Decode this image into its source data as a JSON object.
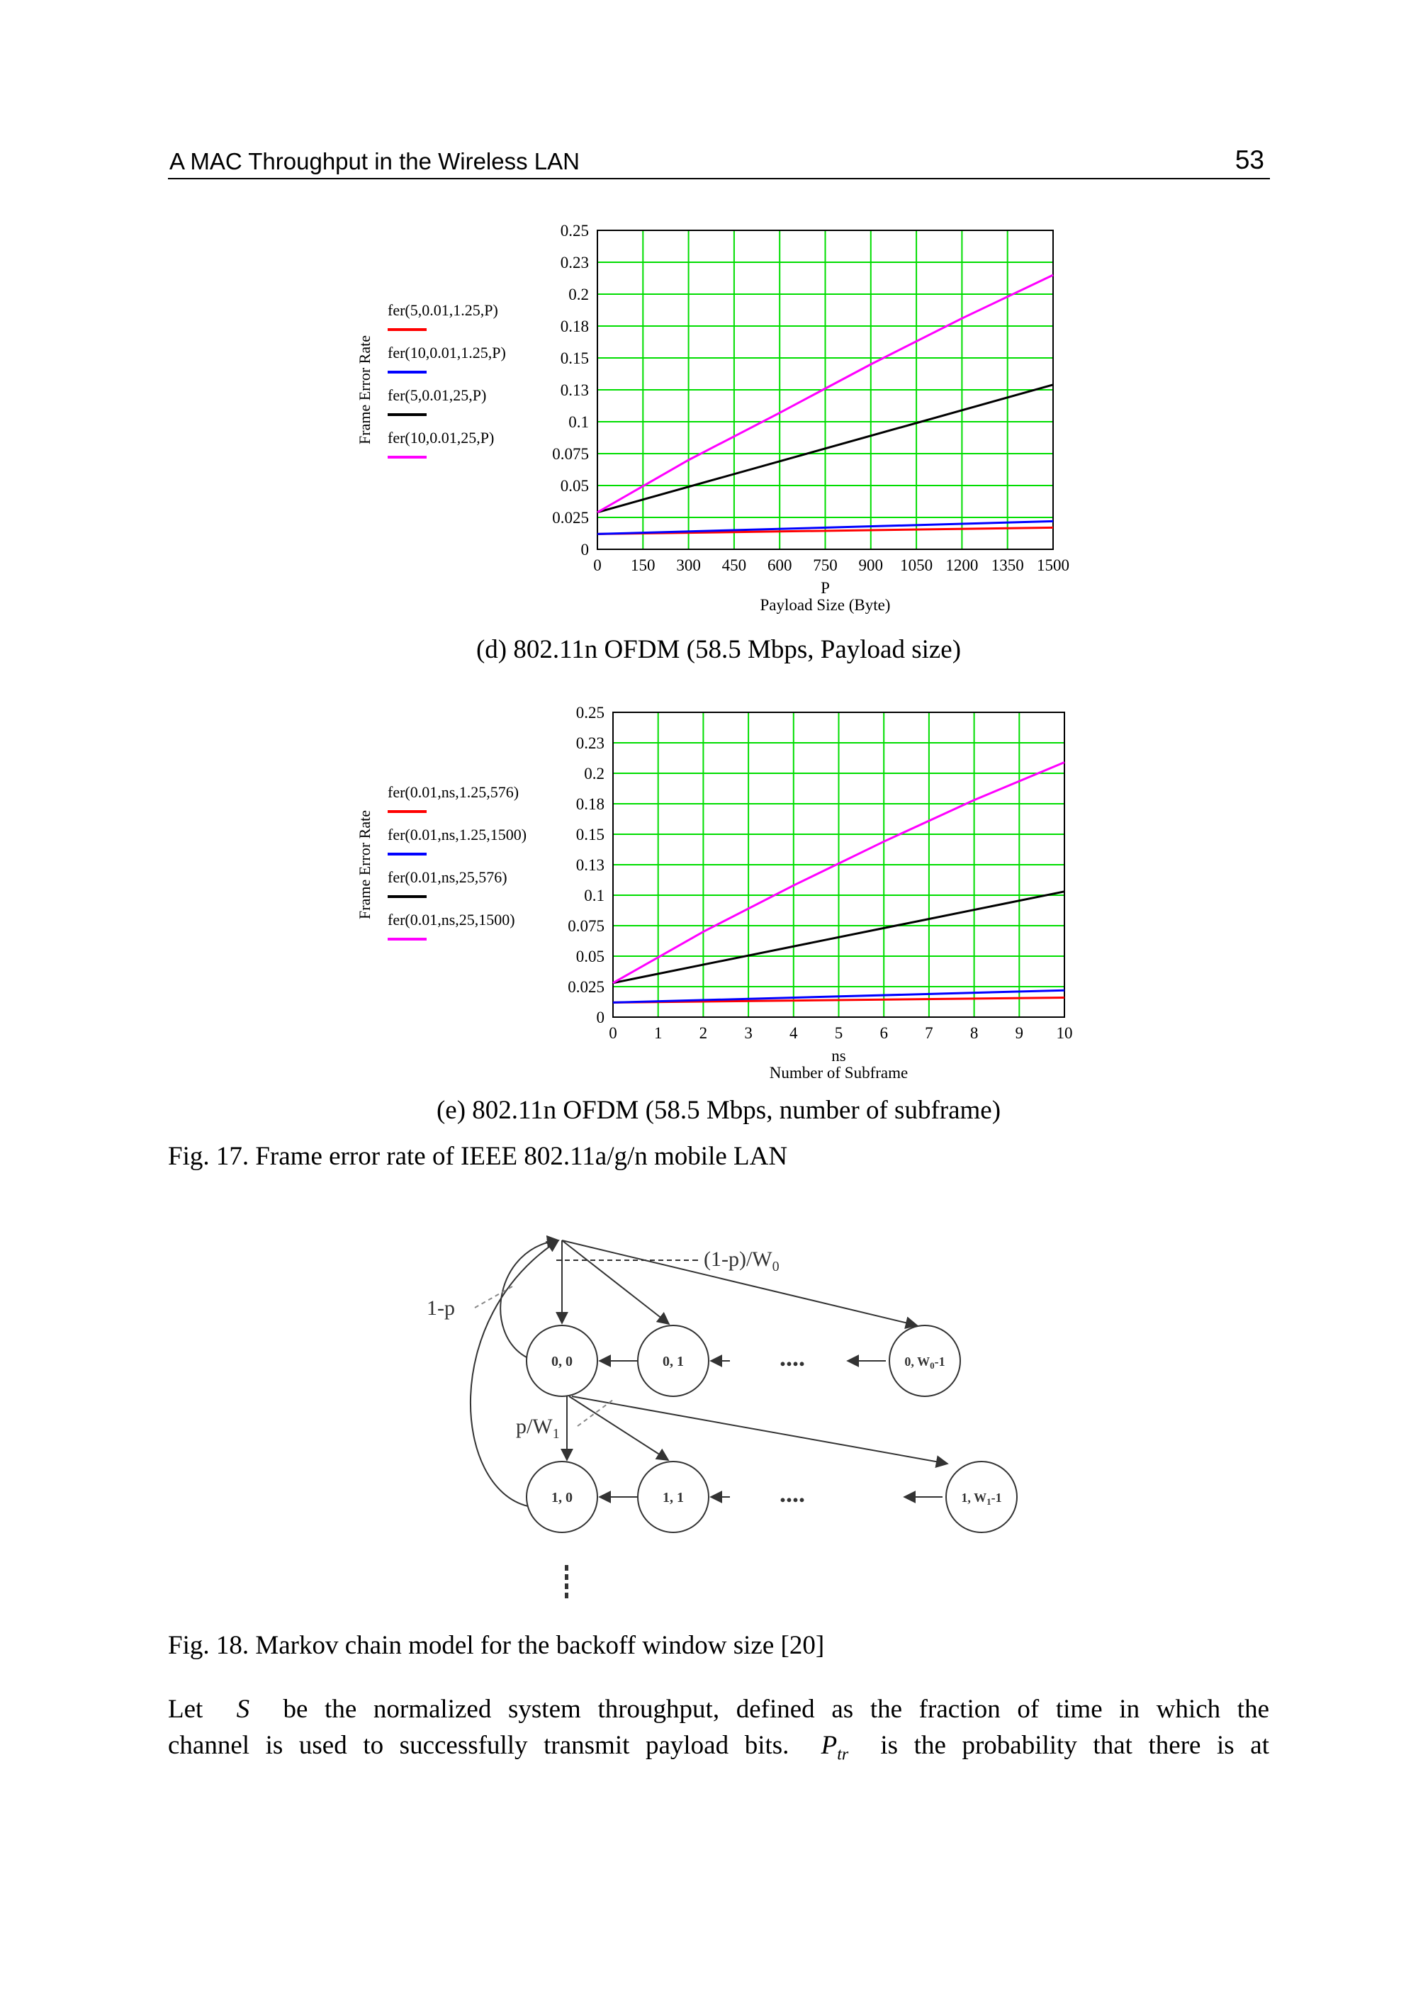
{
  "header": {
    "running_title": "A MAC Throughput in the Wireless LAN",
    "page_number": "53"
  },
  "figure_d": {
    "caption": "(d) 802.11n OFDM (58.5 Mbps, Payload size)"
  },
  "figure_e": {
    "caption": "(e) 802.11n OFDM (58.5 Mbps, number of subframe)"
  },
  "fig17_caption": "Fig. 17. Frame error rate of IEEE 802.11a/g/n mobile LAN",
  "fig18": {
    "caption": "Fig. 18. Markov chain model for the backoff window size [20]",
    "labels": {
      "one_minus_p": "1-p",
      "top_prob": "(1-p)/W",
      "top_prob_sub": "0",
      "p_over_w": "p/W",
      "p_over_w_sub": "1",
      "dots": "....",
      "vdots": "⋮"
    },
    "states": {
      "s00": "0, 0",
      "s01": "0, 1",
      "s0w": "0, W",
      "s0w_sub": "0",
      "s0w_suffix": "-1",
      "s10": "1, 0",
      "s11": "1, 1",
      "s1w": "1, W",
      "s1w_sub": "1",
      "s1w_suffix": "-1"
    }
  },
  "body": {
    "line1_a": "Let",
    "line1_var": "S",
    "line1_b": "be the normalized system throughput, defined as the fraction of time in which the",
    "line2_a": "channel is used to successfully transmit payload bits.",
    "line2_var": "P",
    "line2_sub": "tr",
    "line2_b": "is the probability that there is at"
  },
  "chart_data": [
    {
      "type": "line",
      "id": "d",
      "xlabel_var": "P",
      "xlabel": "Payload Size (Byte)",
      "ylabel": "Frame Error Rate",
      "xlim": [
        0,
        1500
      ],
      "ylim": [
        0,
        0.25
      ],
      "x_ticks": [
        "0",
        "150",
        "300",
        "450",
        "600",
        "750",
        "900",
        "1050",
        "1200",
        "1350",
        "1500"
      ],
      "y_ticks": [
        "0",
        "0.025",
        "0.05",
        "0.075",
        "0.1",
        "0.13",
        "0.15",
        "0.18",
        "0.2",
        "0.23",
        "0.25"
      ],
      "grid": true,
      "legend_placement": "left",
      "series": [
        {
          "name": "fer(5,0.01,1.25,P)",
          "color": "#ff0000",
          "x": [
            0,
            1500
          ],
          "y": [
            0.012,
            0.017
          ]
        },
        {
          "name": "fer(10,0.01,1.25,P)",
          "color": "#0000ff",
          "x": [
            0,
            1500
          ],
          "y": [
            0.012,
            0.022
          ]
        },
        {
          "name": "fer(5,0.01,25,P)",
          "color": "#000000",
          "x": [
            0,
            1500
          ],
          "y": [
            0.029,
            0.129
          ]
        },
        {
          "name": "fer(10,0.01,25,P)",
          "color": "#ff00ff",
          "x": [
            0,
            300,
            600,
            900,
            1200,
            1500
          ],
          "y": [
            0.029,
            0.07,
            0.107,
            0.145,
            0.181,
            0.215
          ]
        }
      ]
    },
    {
      "type": "line",
      "id": "e",
      "xlabel_var": "ns",
      "xlabel": "Number of Subframe",
      "ylabel": "Frame Error Rate",
      "xlim": [
        0,
        10
      ],
      "ylim": [
        0,
        0.25
      ],
      "x_ticks": [
        "0",
        "1",
        "2",
        "3",
        "4",
        "5",
        "6",
        "7",
        "8",
        "9",
        "10"
      ],
      "y_ticks": [
        "0",
        "0.025",
        "0.05",
        "0.075",
        "0.1",
        "0.13",
        "0.15",
        "0.18",
        "0.2",
        "0.23",
        "0.25"
      ],
      "grid": true,
      "legend_placement": "left",
      "series": [
        {
          "name": "fer(0.01,ns,1.25,576)",
          "color": "#ff0000",
          "x": [
            0,
            10
          ],
          "y": [
            0.012,
            0.016
          ]
        },
        {
          "name": "fer(0.01,ns,1.25,1500)",
          "color": "#0000ff",
          "x": [
            0,
            10
          ],
          "y": [
            0.012,
            0.022
          ]
        },
        {
          "name": "fer(0.01,ns,25,576)",
          "color": "#000000",
          "x": [
            0,
            10
          ],
          "y": [
            0.028,
            0.103
          ]
        },
        {
          "name": "fer(0.01,ns,25,1500)",
          "color": "#ff00ff",
          "x": [
            0,
            2,
            4,
            6,
            8,
            10
          ],
          "y": [
            0.028,
            0.07,
            0.108,
            0.144,
            0.178,
            0.209
          ]
        }
      ]
    }
  ]
}
